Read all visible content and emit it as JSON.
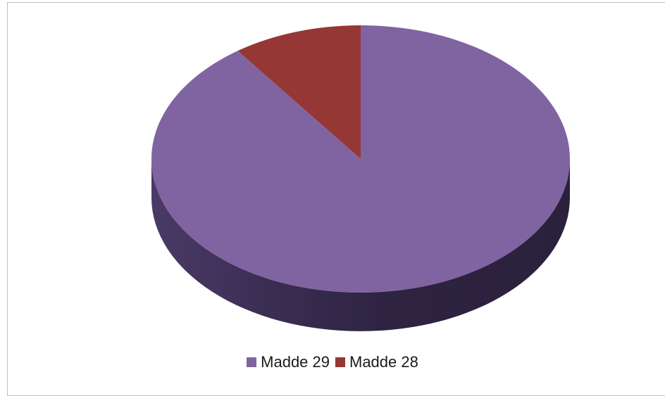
{
  "chart_data": {
    "type": "pie",
    "style": "3d",
    "legend_position": "bottom",
    "slices": [
      {
        "label": "Madde 29",
        "value": 90,
        "color": "#8064a2"
      },
      {
        "label": "Madde 28",
        "value": 10,
        "color": "#953735"
      }
    ]
  }
}
